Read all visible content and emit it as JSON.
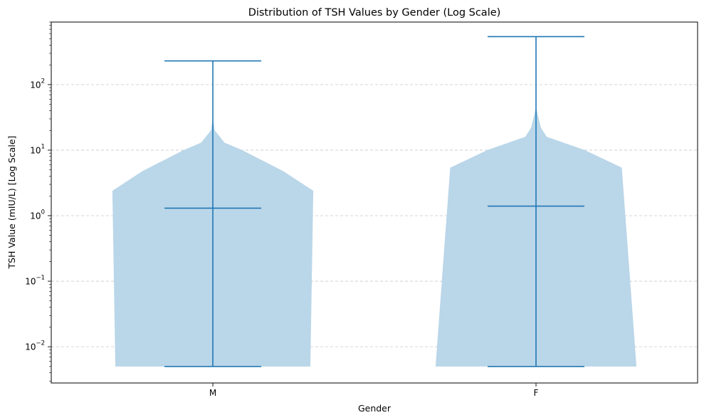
{
  "chart_data": {
    "type": "violin",
    "title": "Distribution of TSH Values by Gender (Log Scale)",
    "xlabel": "Gender",
    "ylabel": "TSH Value (mIU/L) [Log Scale]",
    "yscale": "log",
    "ylim": [
      0.0028,
      900
    ],
    "grid": "y-major-dashed",
    "categories": [
      "M",
      "F"
    ],
    "series": [
      {
        "category": "M",
        "min": 0.005,
        "median": 1.3,
        "max": 230,
        "profile": [
          {
            "y": 0.005,
            "w": 1.0
          },
          {
            "y": 2.4,
            "w": 1.03
          },
          {
            "y": 4.8,
            "w": 0.72
          },
          {
            "y": 10,
            "w": 0.3
          },
          {
            "y": 13,
            "w": 0.12
          },
          {
            "y": 20,
            "w": 0.02
          },
          {
            "y": 30,
            "w": 0.0
          }
        ]
      },
      {
        "category": "F",
        "min": 0.005,
        "median": 1.4,
        "max": 540,
        "profile": [
          {
            "y": 0.005,
            "w": 1.03
          },
          {
            "y": 5.4,
            "w": 0.88
          },
          {
            "y": 10,
            "w": 0.5
          },
          {
            "y": 16,
            "w": 0.11
          },
          {
            "y": 22,
            "w": 0.05
          },
          {
            "y": 45,
            "w": 0.0
          }
        ]
      }
    ],
    "yticks": [
      {
        "value": 0.01,
        "base": "10",
        "exp": "−2"
      },
      {
        "value": 0.1,
        "base": "10",
        "exp": "−1"
      },
      {
        "value": 1,
        "base": "10",
        "exp": "0"
      },
      {
        "value": 10,
        "base": "10",
        "exp": "1"
      },
      {
        "value": 100,
        "base": "10",
        "exp": "2"
      }
    ],
    "colors": {
      "violin_fill": "#bad6e9",
      "line": "#1f77b4",
      "grid": "#c8c8c8"
    }
  }
}
